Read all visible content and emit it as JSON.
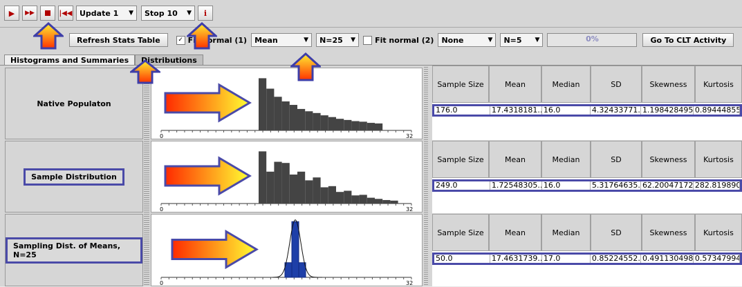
{
  "toolbar": {
    "play_icon": "play-icon",
    "fast_forward_icon": "fast-forward-icon",
    "stop_icon": "stop-icon",
    "reset_icon": "reset-icon",
    "update_select": "Update 1",
    "stop_select": "Stop 10",
    "info_label": "i"
  },
  "controls": {
    "refresh_button": "Refresh Stats Table",
    "fit_normal_1_label": "Fit normal (1)",
    "fit_normal_1_checked": "✓",
    "statistic_select": "Mean",
    "n_select": "N=25",
    "fit_normal_2_label": "Fit normal (2)",
    "fit2_select": "None",
    "n2_select": "N=5",
    "progress": "0%",
    "clt_button": "Go To CLT Activity"
  },
  "tabs": [
    {
      "label": "Histograms and Summaries"
    },
    {
      "label": "Distributions"
    }
  ],
  "panels": [
    {
      "label": "Native Populaton"
    },
    {
      "label": "Sample Distribution"
    },
    {
      "label": "Sampling Dist. of Means, N=25"
    }
  ],
  "axis": {
    "min_label": "0",
    "max_label": "32"
  },
  "table_headers": [
    "Sample Size",
    "Mean",
    "Median",
    "SD",
    "Skewness",
    "Kurtosis"
  ],
  "tables": [
    {
      "row": [
        "176.0",
        "17.4318181...",
        "16.0",
        "4.32433771...",
        "1.198428495...",
        "0.89444855..."
      ]
    },
    {
      "row": [
        "249.0",
        "1.72548305...",
        "16.0",
        "5.31764635...",
        "62.20047172...",
        "282.819890..."
      ]
    },
    {
      "row": [
        "50.0",
        "17.4631739...",
        "17.0",
        "0.85224552...",
        "0.491130498...",
        "0.57347994..."
      ]
    }
  ],
  "chart_data": [
    {
      "type": "bar",
      "name": "Native Populaton",
      "xlim": [
        0,
        32
      ],
      "values": [
        90,
        72,
        58,
        50,
        44,
        37,
        33,
        30,
        26,
        23,
        20,
        18,
        16,
        15,
        13,
        12
      ]
    },
    {
      "type": "bar",
      "name": "Sample Distribution",
      "xlim": [
        0,
        32
      ],
      "values": [
        90,
        55,
        72,
        70,
        50,
        55,
        40,
        45,
        28,
        30,
        20,
        22,
        14,
        15,
        10,
        8,
        6,
        5
      ]
    },
    {
      "type": "bar",
      "name": "Sampling Dist. of Means, N=25",
      "xlim": [
        0,
        32
      ],
      "values": [
        25,
        95,
        25
      ]
    }
  ],
  "colors": {
    "accent_box": "#4a4aa8",
    "bar": "#444444",
    "mean_bar": "#1e3fa8",
    "arrow_start": "#ff2a00",
    "arrow_end": "#ffff33"
  }
}
